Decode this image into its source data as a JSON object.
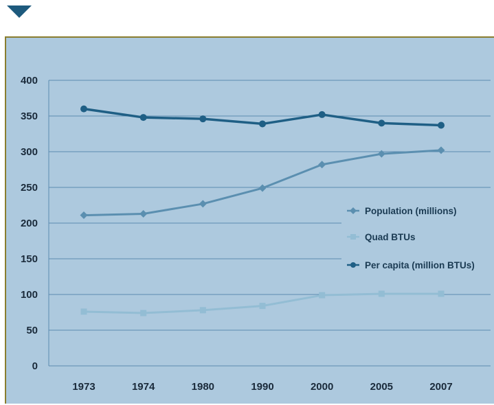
{
  "chart_data": {
    "type": "line",
    "title": "",
    "xlabel": "",
    "ylabel": "",
    "categories": [
      "1973",
      "1974",
      "1980",
      "1990",
      "2000",
      "2005",
      "2007"
    ],
    "ylim": [
      0,
      400
    ],
    "yticks": [
      "0",
      "50",
      "100",
      "150",
      "200",
      "250",
      "300",
      "350",
      "400"
    ],
    "grid": true,
    "legend_position": "right",
    "series": [
      {
        "name": "Population (millions)",
        "values": [
          211,
          213,
          227,
          249,
          282,
          297,
          302
        ],
        "color": "#5b8fb0",
        "marker": "diamond"
      },
      {
        "name": "Quad BTUs",
        "values": [
          76,
          74,
          78,
          84,
          99,
          101,
          101
        ],
        "color": "#93bdd4",
        "marker": "square"
      },
      {
        "name": "Per capita (million BTUs)",
        "values": [
          360,
          348,
          346,
          339,
          352,
          340,
          337
        ],
        "color": "#1f5f85",
        "marker": "circle"
      }
    ]
  },
  "colors": {
    "plot_background": "#adc9de",
    "frame_border": "#8a7d2e",
    "gridline": "#5a8cb0",
    "marker_triangle": "#1d5a7d"
  },
  "icons": {
    "top_marker": "triangle-down-icon"
  }
}
